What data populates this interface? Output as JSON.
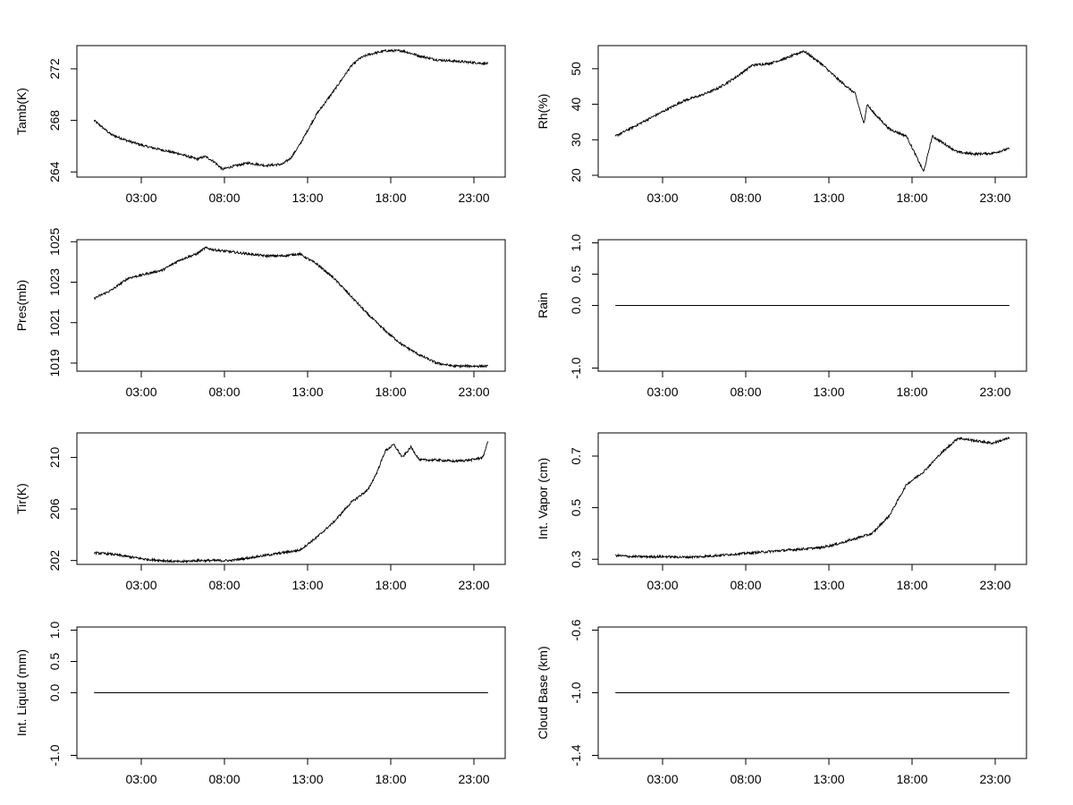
{
  "chart_data": [
    {
      "type": "line",
      "ylabel": "Tamb(K)",
      "x_ticks": [
        "03:00",
        "08:00",
        "13:00",
        "18:00",
        "23:00"
      ],
      "y_ticks": [
        "264",
        "268",
        "272"
      ],
      "xlim": [
        0.0,
        25.0
      ],
      "ylim": [
        263.6,
        273.8
      ],
      "x": [
        1.0,
        2.0,
        3.0,
        4.0,
        5.0,
        6.0,
        7.0,
        7.5,
        8.0,
        8.5,
        9.0,
        10.0,
        11.0,
        12.0,
        12.5,
        13.0,
        14.0,
        15.0,
        16.0,
        16.5,
        17.0,
        18.0,
        19.0,
        20.0,
        21.0,
        22.0,
        23.0,
        24.0
      ],
      "y": [
        268.0,
        266.9,
        266.4,
        266.0,
        265.7,
        265.4,
        265.0,
        265.2,
        264.8,
        264.2,
        264.4,
        264.7,
        264.5,
        264.6,
        265.1,
        266.1,
        268.5,
        270.3,
        272.2,
        272.8,
        273.1,
        273.4,
        273.4,
        273.0,
        272.7,
        272.6,
        272.5,
        272.4
      ],
      "grid": false
    },
    {
      "type": "line",
      "ylabel": "Rh(%)",
      "x_ticks": [
        "03:00",
        "08:00",
        "13:00",
        "18:00",
        "23:00"
      ],
      "y_ticks": [
        "20",
        "30",
        "40",
        "50"
      ],
      "xlim": [
        0.0,
        25.0
      ],
      "ylim": [
        19.5,
        56.5
      ],
      "x": [
        1.0,
        2.0,
        3.0,
        4.0,
        5.0,
        6.0,
        7.0,
        8.0,
        9.0,
        10.0,
        11.0,
        12.0,
        13.0,
        14.0,
        15.0,
        15.5,
        15.7,
        16.0,
        17.0,
        18.0,
        18.5,
        19.0,
        19.5,
        20.0,
        21.0,
        22.0,
        23.0,
        24.0
      ],
      "y": [
        31.0,
        33.5,
        36.0,
        38.5,
        41.0,
        42.5,
        44.5,
        47.5,
        51.0,
        51.5,
        53.0,
        55.0,
        51.5,
        47.0,
        43.0,
        34.5,
        40.0,
        38.0,
        33.0,
        31.0,
        26.0,
        21.0,
        31.0,
        29.5,
        26.5,
        26.0,
        26.2,
        27.5
      ],
      "grid": false
    },
    {
      "type": "line",
      "ylabel": "Pres(mb)",
      "x_ticks": [
        "03:00",
        "08:00",
        "13:00",
        "18:00",
        "23:00"
      ],
      "y_ticks": [
        "1019",
        "1021",
        "1023",
        "1025"
      ],
      "xlim": [
        0.0,
        25.0
      ],
      "ylim": [
        1018.6,
        1025.1
      ],
      "x": [
        1.0,
        2.0,
        3.0,
        4.0,
        5.0,
        6.0,
        7.0,
        7.5,
        8.0,
        9.0,
        10.0,
        11.0,
        12.0,
        13.0,
        14.0,
        15.0,
        16.0,
        17.0,
        18.0,
        19.0,
        20.0,
        21.0,
        22.0,
        23.0,
        24.0
      ],
      "y": [
        1022.2,
        1022.6,
        1023.2,
        1023.4,
        1023.6,
        1024.1,
        1024.4,
        1024.7,
        1024.6,
        1024.5,
        1024.4,
        1024.3,
        1024.3,
        1024.4,
        1023.9,
        1023.2,
        1022.3,
        1021.4,
        1020.6,
        1019.9,
        1019.4,
        1019.0,
        1018.85,
        1018.85,
        1018.85
      ],
      "grid": false
    },
    {
      "type": "line",
      "ylabel": "Rain",
      "x_ticks": [
        "03:00",
        "08:00",
        "13:00",
        "18:00",
        "23:00"
      ],
      "y_ticks": [
        "-1.0",
        "0.0",
        "0.5",
        "1.0"
      ],
      "xlim": [
        0.0,
        25.0
      ],
      "ylim": [
        -1.05,
        1.05
      ],
      "x": [
        1.0,
        24.0
      ],
      "y": [
        0.0,
        0.0
      ],
      "grid": false
    },
    {
      "type": "line",
      "ylabel": "Tir(K)",
      "x_ticks": [
        "03:00",
        "08:00",
        "13:00",
        "18:00",
        "23:00"
      ],
      "y_ticks": [
        "202",
        "206",
        "210"
      ],
      "xlim": [
        0.0,
        25.0
      ],
      "ylim": [
        201.7,
        211.9
      ],
      "x": [
        1.0,
        2.0,
        3.0,
        4.0,
        5.0,
        6.0,
        7.0,
        8.0,
        9.0,
        10.0,
        11.0,
        12.0,
        13.0,
        14.0,
        15.0,
        16.0,
        17.0,
        17.5,
        18.0,
        18.5,
        19.0,
        19.5,
        20.0,
        21.0,
        22.0,
        23.0,
        23.7,
        24.0
      ],
      "y": [
        202.6,
        202.5,
        202.3,
        202.1,
        202.0,
        201.9,
        202.0,
        202.0,
        202.0,
        202.2,
        202.4,
        202.6,
        202.8,
        203.8,
        205.0,
        206.5,
        207.5,
        208.8,
        210.5,
        211.0,
        210.0,
        210.8,
        209.8,
        209.8,
        209.7,
        209.8,
        210.0,
        211.3
      ],
      "grid": false
    },
    {
      "type": "line",
      "ylabel": "Int. Vapor (cm)",
      "x_ticks": [
        "03:00",
        "08:00",
        "13:00",
        "18:00",
        "23:00"
      ],
      "y_ticks": [
        "0.3",
        "0.5",
        "0.7"
      ],
      "xlim": [
        0.0,
        25.0
      ],
      "ylim": [
        0.28,
        0.79
      ],
      "x": [
        1.0,
        2.0,
        3.0,
        4.0,
        5.0,
        6.0,
        7.0,
        8.0,
        9.0,
        10.0,
        11.0,
        12.0,
        13.0,
        14.0,
        15.0,
        16.0,
        17.0,
        18.0,
        19.0,
        20.0,
        21.0,
        22.0,
        23.0,
        24.0
      ],
      "y": [
        0.315,
        0.31,
        0.31,
        0.31,
        0.308,
        0.31,
        0.315,
        0.32,
        0.325,
        0.33,
        0.335,
        0.34,
        0.345,
        0.36,
        0.38,
        0.4,
        0.47,
        0.59,
        0.64,
        0.71,
        0.77,
        0.76,
        0.75,
        0.77
      ],
      "grid": false
    },
    {
      "type": "line",
      "ylabel": "Int. Liquid (mm)",
      "x_ticks": [
        "03:00",
        "08:00",
        "13:00",
        "18:00",
        "23:00"
      ],
      "y_ticks": [
        "-1.0",
        "0.0",
        "0.5",
        "1.0"
      ],
      "xlim": [
        0.0,
        25.0
      ],
      "ylim": [
        -1.05,
        1.05
      ],
      "x": [
        1.0,
        24.0
      ],
      "y": [
        0.0,
        0.0
      ],
      "grid": false
    },
    {
      "type": "line",
      "ylabel": "Cloud Base (km)",
      "x_ticks": [
        "03:00",
        "08:00",
        "13:00",
        "18:00",
        "23:00"
      ],
      "y_ticks": [
        "-1.4",
        "-1.0",
        "-0.6"
      ],
      "xlim": [
        0.0,
        25.0
      ],
      "ylim": [
        -1.42,
        -0.58
      ],
      "x": [
        1.0,
        24.0
      ],
      "y": [
        -1.0,
        -1.0
      ],
      "grid": false
    }
  ]
}
